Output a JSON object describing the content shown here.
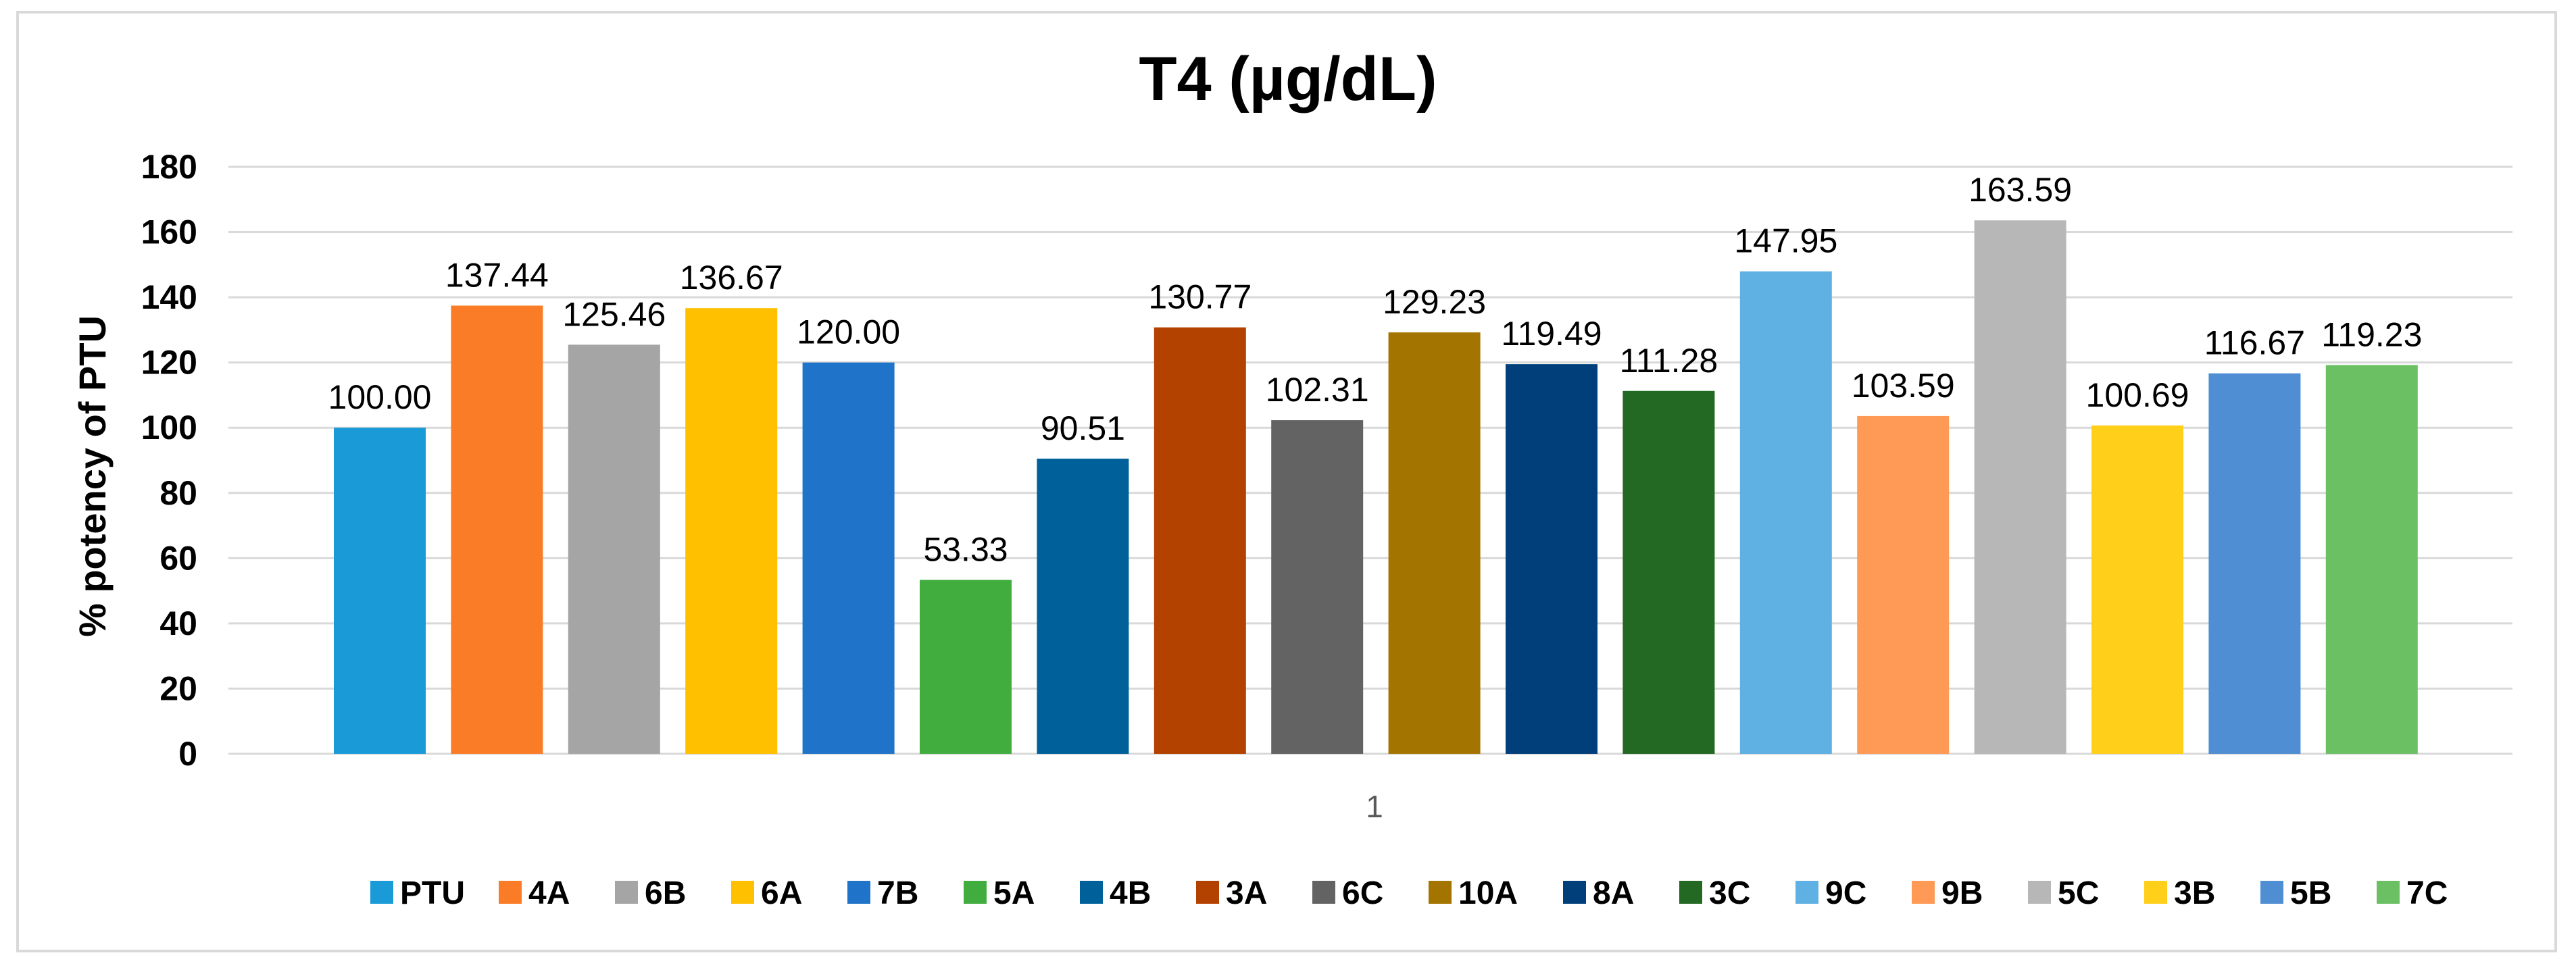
{
  "chart_data": {
    "type": "bar",
    "title": "T4 (µg/dL)",
    "ylabel": "% potency of PTU",
    "xlabel": "",
    "categories": [
      "1"
    ],
    "ylim": [
      0,
      180
    ],
    "yticks": [
      0,
      20,
      40,
      60,
      80,
      100,
      120,
      140,
      160,
      180
    ],
    "grid": true,
    "legend_position": "bottom",
    "series": [
      {
        "name": "PTU",
        "values": [
          100.0
        ],
        "label": "100.00",
        "color": "#1a9bd7"
      },
      {
        "name": "4A",
        "values": [
          137.44
        ],
        "label": "137.44",
        "color": "#fb7c26"
      },
      {
        "name": "6B",
        "values": [
          125.46
        ],
        "label": "125.46",
        "color": "#a5a5a5"
      },
      {
        "name": "6A",
        "values": [
          136.67
        ],
        "label": "136.67",
        "color": "#ffc000"
      },
      {
        "name": "7B",
        "values": [
          120.0
        ],
        "label": "120.00",
        "color": "#1f73c8"
      },
      {
        "name": "5A",
        "values": [
          53.33
        ],
        "label": "53.33",
        "color": "#41ad3f"
      },
      {
        "name": "4B",
        "values": [
          90.51
        ],
        "label": "90.51",
        "color": "#00609a"
      },
      {
        "name": "3A",
        "values": [
          130.77
        ],
        "label": "130.77",
        "color": "#b34100"
      },
      {
        "name": "6C",
        "values": [
          102.31
        ],
        "label": "102.31",
        "color": "#636363"
      },
      {
        "name": "10A",
        "values": [
          129.23
        ],
        "label": "129.23",
        "color": "#a47400"
      },
      {
        "name": "8A",
        "values": [
          119.49
        ],
        "label": "119.49",
        "color": "#003f7a"
      },
      {
        "name": "3C",
        "values": [
          111.28
        ],
        "label": "111.28",
        "color": "#236823"
      },
      {
        "name": "9C",
        "values": [
          147.95
        ],
        "label": "147.95",
        "color": "#5fb0e3"
      },
      {
        "name": "9B",
        "values": [
          103.59
        ],
        "label": "103.59",
        "color": "#ff9a56"
      },
      {
        "name": "5C",
        "values": [
          163.59
        ],
        "label": "163.59",
        "color": "#b7b7b7"
      },
      {
        "name": "3B",
        "values": [
          100.69
        ],
        "label": "100.69",
        "color": "#ffcf1a"
      },
      {
        "name": "5B",
        "values": [
          116.67
        ],
        "label": "116.67",
        "color": "#4f8ed2"
      },
      {
        "name": "7C",
        "values": [
          119.23
        ],
        "label": "119.23",
        "color": "#6cc064"
      }
    ]
  }
}
